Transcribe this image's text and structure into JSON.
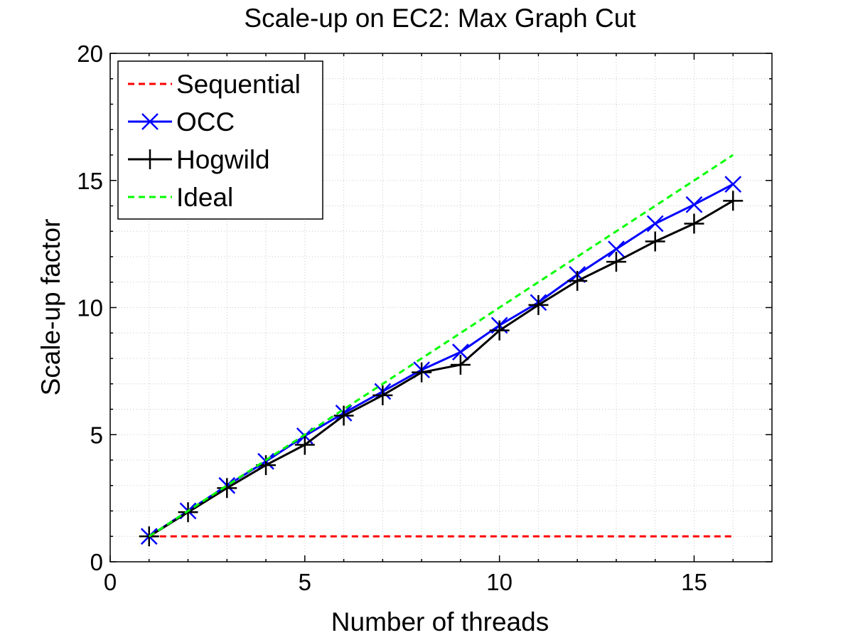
{
  "chart_data": {
    "type": "line",
    "title": "Scale-up on EC2: Max Graph Cut",
    "xlabel": "Number of threads",
    "ylabel": "Scale-up factor",
    "xlim": [
      0,
      17
    ],
    "ylim": [
      0,
      20
    ],
    "xticks": [
      0,
      5,
      10,
      15
    ],
    "yticks": [
      0,
      5,
      10,
      15,
      20
    ],
    "grid": true,
    "legend_position": "top-left",
    "x": [
      1,
      2,
      3,
      4,
      5,
      6,
      7,
      8,
      9,
      10,
      11,
      12,
      13,
      14,
      15,
      16
    ],
    "series": [
      {
        "name": "Sequential",
        "color": "#ff0000",
        "style": "dashed",
        "marker": "none",
        "values": [
          1,
          1,
          1,
          1,
          1,
          1,
          1,
          1,
          1,
          1,
          1,
          1,
          1,
          1,
          1,
          1
        ]
      },
      {
        "name": "OCC",
        "color": "#0000ff",
        "style": "solid",
        "marker": "x",
        "values": [
          1,
          2.0,
          3.0,
          3.95,
          4.95,
          5.85,
          6.7,
          7.55,
          8.25,
          9.3,
          10.2,
          11.3,
          12.3,
          13.3,
          14.05,
          14.85
        ]
      },
      {
        "name": "Hogwild",
        "color": "#000000",
        "style": "solid",
        "marker": "plus",
        "values": [
          1,
          1.95,
          2.9,
          3.8,
          4.6,
          5.75,
          6.55,
          7.45,
          7.75,
          9.1,
          10.1,
          11.05,
          11.8,
          12.6,
          13.3,
          14.2
        ]
      },
      {
        "name": "Ideal",
        "color": "#00ff00",
        "style": "dashed",
        "marker": "none",
        "values": [
          1,
          2,
          3,
          4,
          5,
          6,
          7,
          8,
          9,
          10,
          11,
          12,
          13,
          14,
          15,
          16
        ]
      }
    ]
  }
}
